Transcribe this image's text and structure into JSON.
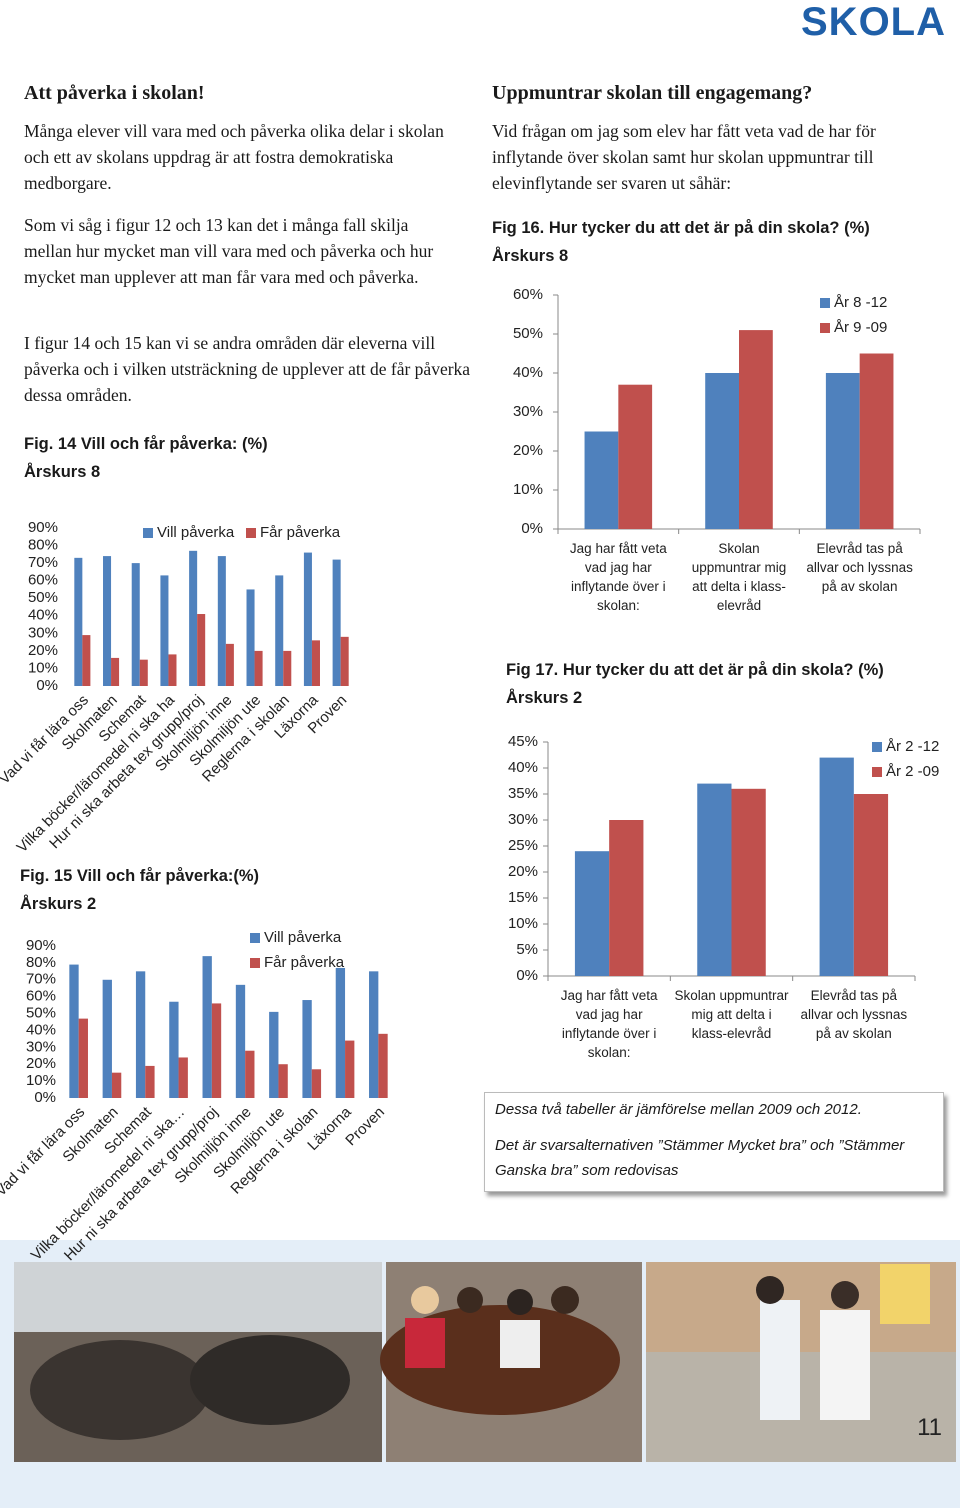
{
  "header": {
    "brand": "SKOLA"
  },
  "left": {
    "title": "Att påverka i skolan!",
    "paragraphs": [
      "Många elever vill vara med och påverka olika delar i skolan och ett av skolans uppdrag är att fostra demokratiska medborgare.",
      "Som vi såg i figur 12 och 13 kan det i många fall skilja mellan hur mycket man vill vara med och påverka och hur mycket man upplever att man får vara med och påverka.",
      "I figur 14 och 15 kan vi se andra områden där eleverna vill påverka och i vilken utsträckning de upplever att de får påverka dessa områden."
    ]
  },
  "right": {
    "title": "Uppmuntrar skolan till engagemang?",
    "paragraphs": [
      "Vid frågan om jag som elev har fått veta vad de har för inflytande över skolan samt hur skolan uppmuntrar till elevinflytande ser svaren ut såhär:"
    ]
  },
  "note": {
    "lines": [
      "Dessa två tabeller är jämförelse mellan 2009 och 2012.",
      "Det är svarsalternativen ”Stämmer Mycket bra” och ”Stämmer Ganska bra” som redovisas"
    ]
  },
  "page_number": "11",
  "chart_data": [
    {
      "type": "bar",
      "title": "Fig. 14  Vill och får påverka: (%)",
      "subtitle": "Årskurs 8",
      "categories": [
        "Vad vi får lära oss",
        "Skolmaten",
        "Schemat",
        "Vilka böcker/läromedel ni ska ha",
        "Hur ni ska arbeta tex grupp/proj",
        "Skolmiljön inne",
        "Skolmiljön ute",
        "Reglerna i skolan",
        "Läxorna",
        "Proven"
      ],
      "series": [
        {
          "name": "Vill påverka",
          "color": "#4f81bd",
          "values": [
            73,
            74,
            70,
            63,
            77,
            74,
            55,
            63,
            76,
            72
          ]
        },
        {
          "name": "Får påverka",
          "color": "#c0504d",
          "values": [
            29,
            16,
            15,
            18,
            41,
            24,
            20,
            20,
            26,
            28
          ]
        }
      ],
      "ylim": [
        0,
        90
      ],
      "yticks": [
        {
          "value": 0,
          "label": "0%"
        },
        {
          "value": 10,
          "label": "10%"
        },
        {
          "value": 20,
          "label": "20%"
        },
        {
          "value": 30,
          "label": "30%"
        },
        {
          "value": 40,
          "label": "40%"
        },
        {
          "value": 50,
          "label": "50%"
        },
        {
          "value": 60,
          "label": "60%"
        },
        {
          "value": 70,
          "label": "70%"
        },
        {
          "value": 80,
          "label": "80%"
        },
        {
          "value": 90,
          "label": "90%"
        }
      ],
      "legend": "top"
    },
    {
      "type": "bar",
      "title": "Fig. 15  Vill och får påverka:(%)",
      "subtitle": "Årskurs 2",
      "categories": [
        "Vad vi får lära oss",
        "Skolmaten",
        "Schemat",
        "Vilka böcker/läromedel ni ska…",
        "Hur ni ska arbeta tex grupp/proj",
        "Skolmiljön inne",
        "Skolmiljön ute",
        "Reglerna i skolan",
        "Läxorna",
        "Proven"
      ],
      "series": [
        {
          "name": "Vill påverka",
          "color": "#4f81bd",
          "values": [
            79,
            70,
            75,
            57,
            84,
            67,
            51,
            58,
            77,
            75
          ]
        },
        {
          "name": "Får påverka",
          "color": "#c0504d",
          "values": [
            47,
            15,
            19,
            24,
            56,
            28,
            20,
            17,
            34,
            38
          ]
        }
      ],
      "ylim": [
        0,
        90
      ],
      "yticks": [
        {
          "value": 0,
          "label": "0%"
        },
        {
          "value": 10,
          "label": "10%"
        },
        {
          "value": 20,
          "label": "20%"
        },
        {
          "value": 30,
          "label": "30%"
        },
        {
          "value": 40,
          "label": "40%"
        },
        {
          "value": 50,
          "label": "50%"
        },
        {
          "value": 60,
          "label": "60%"
        },
        {
          "value": 70,
          "label": "70%"
        },
        {
          "value": 80,
          "label": "80%"
        },
        {
          "value": 90,
          "label": "90%"
        }
      ],
      "legend": "top-right"
    },
    {
      "type": "bar",
      "title": "Fig 16. Hur tycker du att det är på din skola? (%)",
      "subtitle": "Årskurs 8",
      "categories": [
        "Jag har fått veta vad jag har inflytande över i skolan:",
        "Skolan uppmuntrar mig att delta i klass-elevråd",
        "Elevråd tas på allvar och lyssnas på av skolan"
      ],
      "series": [
        {
          "name": "År 8 -12",
          "color": "#4f81bd",
          "values": [
            25,
            40,
            40
          ]
        },
        {
          "name": "År 9 -09",
          "color": "#c0504d",
          "values": [
            37,
            51,
            45
          ]
        }
      ],
      "ylim": [
        0,
        60
      ],
      "yticks": [
        {
          "value": 0,
          "label": "0%"
        },
        {
          "value": 10,
          "label": "10%"
        },
        {
          "value": 20,
          "label": "20%"
        },
        {
          "value": 30,
          "label": "30%"
        },
        {
          "value": 40,
          "label": "40%"
        },
        {
          "value": 50,
          "label": "50%"
        },
        {
          "value": 60,
          "label": "60%"
        }
      ],
      "legend": "top-right"
    },
    {
      "type": "bar",
      "title": "Fig 17. Hur tycker du att det är på din skola? (%)",
      "subtitle": "Årskurs 2",
      "categories": [
        "Jag har fått veta vad jag har inflytande över i skolan:",
        "Skolan uppmuntrar mig att delta i klass-elevråd",
        "Elevråd tas på allvar och lyssnas på av skolan"
      ],
      "series": [
        {
          "name": "År 2 -12",
          "color": "#4f81bd",
          "values": [
            24,
            37,
            42
          ]
        },
        {
          "name": "År 2 -09",
          "color": "#c0504d",
          "values": [
            30,
            36,
            35
          ]
        }
      ],
      "ylim": [
        0,
        45
      ],
      "yticks": [
        {
          "value": 0,
          "label": "0%"
        },
        {
          "value": 5,
          "label": "5%"
        },
        {
          "value": 10,
          "label": "10%"
        },
        {
          "value": 15,
          "label": "15%"
        },
        {
          "value": 20,
          "label": "20%"
        },
        {
          "value": 25,
          "label": "25%"
        },
        {
          "value": 30,
          "label": "30%"
        },
        {
          "value": 35,
          "label": "35%"
        },
        {
          "value": 40,
          "label": "40%"
        },
        {
          "value": 45,
          "label": "45%"
        }
      ],
      "legend": "top-right"
    }
  ]
}
